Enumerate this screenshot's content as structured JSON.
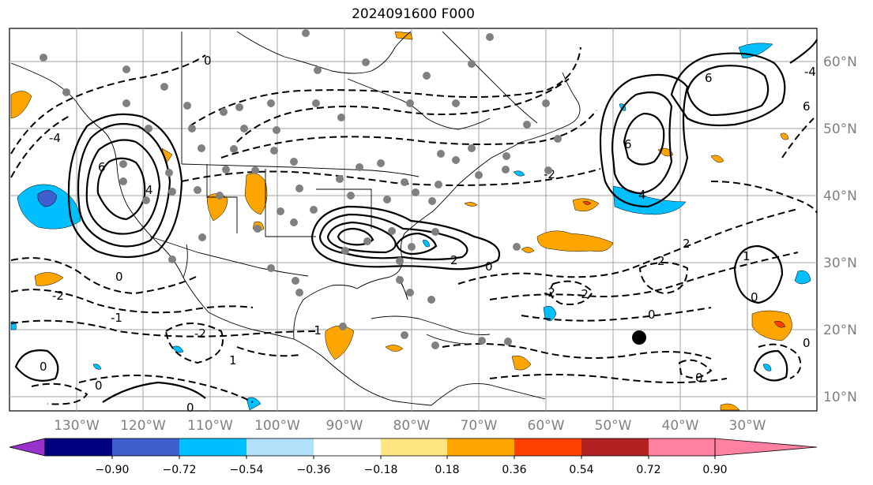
{
  "title": "2024091600 F000",
  "map": {
    "lat_labels": [
      "60°N",
      "50°N",
      "40°N",
      "30°N",
      "20°N",
      "10°N"
    ],
    "lon_labels": [
      "130°W",
      "120°W",
      "110°W",
      "100°W",
      "90°W",
      "80°W",
      "70°W",
      "60°W",
      "50°W",
      "40°W",
      "30°W"
    ],
    "contour_labels": [
      "0",
      "2",
      "4",
      "6",
      "-2",
      "-4",
      "1",
      "-1"
    ]
  },
  "colorbar": {
    "tick_labels": [
      "−0.90",
      "−0.72",
      "−0.54",
      "−0.36",
      "−0.18",
      "0.18",
      "0.36",
      "0.54",
      "0.72",
      "0.90"
    ],
    "colors": [
      "#9932cc",
      "#000080",
      "#3f5fcf",
      "#00bfff",
      "#b0e0fa",
      "#ffffff",
      "#ffe680",
      "#ffa500",
      "#ff4000",
      "#b22222",
      "#ff80a0"
    ]
  }
}
